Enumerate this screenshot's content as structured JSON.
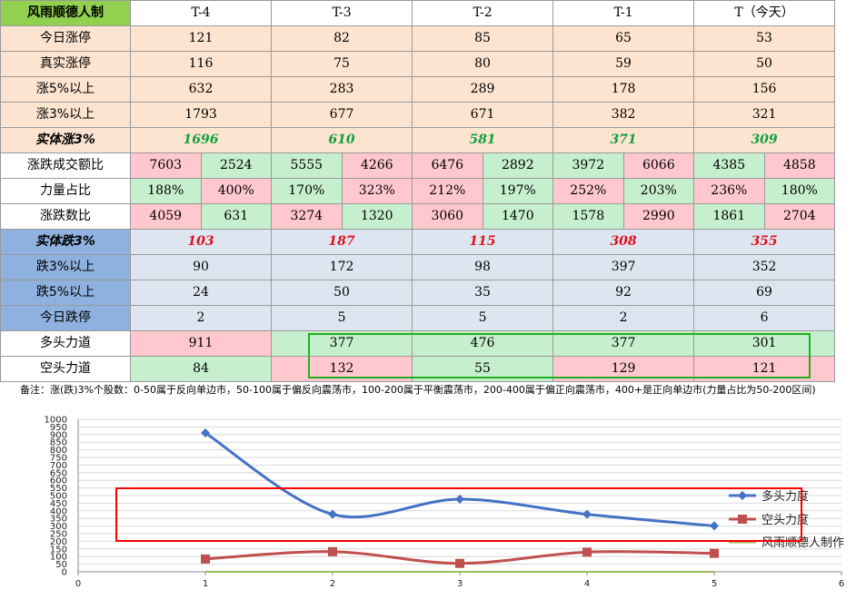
{
  "table": {
    "title": "风雨顺德人制",
    "columns": [
      "T-4",
      "T-3",
      "T-2",
      "T-1",
      "T（今天）"
    ],
    "rows": {
      "limit_up": {
        "label": "今日涨停",
        "values": [
          "121",
          "82",
          "85",
          "65",
          "53"
        ]
      },
      "real_limit_up": {
        "label": "真实涨停",
        "values": [
          "116",
          "75",
          "80",
          "59",
          "50"
        ]
      },
      "up5": {
        "label": "涨5%以上",
        "values": [
          "632",
          "283",
          "289",
          "178",
          "156"
        ]
      },
      "up3": {
        "label": "涨3%以上",
        "values": [
          "1793",
          "677",
          "671",
          "382",
          "321"
        ]
      },
      "solid_up3": {
        "label": "实体涨3%",
        "values": [
          "1696",
          "610",
          "581",
          "371",
          "309"
        ]
      },
      "turnover_ratio": {
        "label": "涨跌成交额比",
        "pairs": [
          [
            "7603",
            "2524"
          ],
          [
            "5555",
            "4266"
          ],
          [
            "6476",
            "2892"
          ],
          [
            "3972",
            "6066"
          ],
          [
            "4385",
            "4858"
          ]
        ]
      },
      "power_ratio": {
        "label": "力量占比",
        "pairs": [
          [
            "188%",
            "400%"
          ],
          [
            "170%",
            "323%"
          ],
          [
            "212%",
            "197%"
          ],
          [
            "252%",
            "203%"
          ],
          [
            "236%",
            "180%"
          ]
        ]
      },
      "count_ratio": {
        "label": "涨跌数比",
        "pairs": [
          [
            "4059",
            "631"
          ],
          [
            "3274",
            "1320"
          ],
          [
            "3060",
            "1470"
          ],
          [
            "1578",
            "2990"
          ],
          [
            "1861",
            "2704"
          ]
        ]
      },
      "solid_down3": {
        "label": "实体跌3%",
        "values": [
          "103",
          "187",
          "115",
          "308",
          "355"
        ]
      },
      "down3": {
        "label": "跌3%以上",
        "values": [
          "90",
          "172",
          "98",
          "397",
          "352"
        ]
      },
      "down5": {
        "label": "跌5%以上",
        "values": [
          "24",
          "50",
          "35",
          "92",
          "69"
        ]
      },
      "limit_down": {
        "label": "今日跌停",
        "values": [
          "2",
          "5",
          "5",
          "2",
          "6"
        ]
      },
      "bull_power": {
        "label": "多头力道",
        "values": [
          "911",
          "377",
          "476",
          "377",
          "301"
        ]
      },
      "bear_power": {
        "label": "空头力道",
        "values": [
          "84",
          "132",
          "55",
          "129",
          "121"
        ]
      }
    },
    "colors": {
      "header_green": "#92d050",
      "peach": "#fde4d0",
      "blue_label": "#8fb1e0",
      "light_blue": "#dde6f0",
      "pink": "#ffc7ce",
      "green": "#c6efce",
      "text_green": "#10a040",
      "text_red": "#e0101e"
    }
  },
  "note": "备注：涨(跌)3%个股数：0-50属于反向单边市，50-100属于偏反向震荡市，100-200属于平衡震荡市，200-400属于偏正向震荡市，400+是正向单边市(力量占比为50-200区间)",
  "watermark": "风雨顺德人",
  "chart_data": {
    "type": "line",
    "x": [
      1,
      2,
      3,
      4,
      5
    ],
    "series": [
      {
        "name": "多头力度",
        "values": [
          911,
          377,
          476,
          377,
          301
        ],
        "color": "#4472c4",
        "marker": "diamond"
      },
      {
        "name": "空头力度",
        "values": [
          84,
          132,
          55,
          129,
          121
        ],
        "color": "#c0504d",
        "marker": "square"
      },
      {
        "name": "风雨顺德人制作",
        "values": [
          0,
          0,
          0,
          0,
          0
        ],
        "color": "#9bbb59",
        "marker": "none"
      }
    ],
    "xlim": [
      0,
      6
    ],
    "ylim": [
      0,
      1000
    ],
    "xticks": [
      "0",
      "1",
      "2",
      "3",
      "4",
      "5",
      "6"
    ],
    "yticks": [
      "0",
      "50",
      "100",
      "150",
      "200",
      "250",
      "300",
      "350",
      "400",
      "450",
      "500",
      "550",
      "600",
      "650",
      "700",
      "750",
      "800",
      "850",
      "900",
      "950",
      "1000"
    ],
    "grid": true,
    "legend": "right",
    "highlight_box_color": "#ff0000"
  }
}
